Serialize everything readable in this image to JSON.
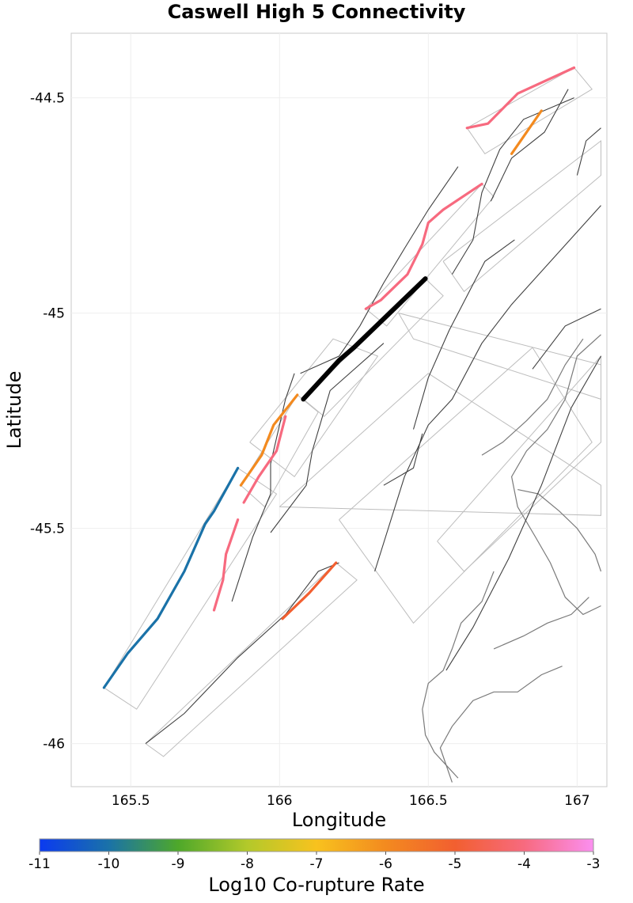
{
  "title": "Caswell High 5 Connectivity",
  "xlabel": "Longitude",
  "ylabel": "Latitude",
  "xlim": [
    165.3,
    167.1
  ],
  "ylim": [
    -46.1,
    -44.35
  ],
  "xticks": [
    165.5,
    166,
    166.5,
    167
  ],
  "xtick_labels": [
    "165.5",
    "166",
    "166.5",
    "167"
  ],
  "yticks": [
    -44.5,
    -45,
    -45.5,
    -46
  ],
  "ytick_labels": [
    "-44.5",
    "-45",
    "-45.5",
    "-46"
  ],
  "colorbar": {
    "label": "Log10 Co-rupture Rate",
    "min": -11,
    "max": -3,
    "ticks": [
      "-11",
      "-10",
      "-9",
      "-8",
      "-7",
      "-6",
      "-5",
      "-4",
      "-3"
    ],
    "colors": [
      "#0b3af0",
      "#1a72a8",
      "#4ea82a",
      "#b3c92a",
      "#f8c21e",
      "#f38a1f",
      "#f25f30",
      "#f76a7f",
      "#fb8ff0"
    ]
  },
  "colors": {
    "target_fault": "#000000",
    "outline": "#bdbdbd",
    "trace": "#404040",
    "coast": "#7a7a7a",
    "grid": "#eeeeee"
  },
  "chart_data": {
    "type": "map",
    "target_section": {
      "name": "Caswell High 5",
      "path": [
        [
          166.08,
          -45.2
        ],
        [
          166.2,
          -45.11
        ],
        [
          166.25,
          -45.08
        ],
        [
          166.49,
          -44.92
        ]
      ]
    },
    "connected_sections": [
      {
        "rate": -10.0,
        "path": [
          [
            165.41,
            -45.87
          ],
          [
            165.49,
            -45.79
          ],
          [
            165.59,
            -45.71
          ],
          [
            165.68,
            -45.6
          ],
          [
            165.75,
            -45.49
          ],
          [
            165.78,
            -45.46
          ],
          [
            165.86,
            -45.36
          ]
        ]
      },
      {
        "rate": -6.0,
        "path": [
          [
            165.87,
            -45.4
          ],
          [
            165.94,
            -45.33
          ],
          [
            165.98,
            -45.26
          ],
          [
            166.06,
            -45.19
          ]
        ]
      },
      {
        "rate": -4.0,
        "path": [
          [
            165.88,
            -45.44
          ],
          [
            165.93,
            -45.38
          ],
          [
            165.99,
            -45.32
          ],
          [
            166.02,
            -45.24
          ]
        ]
      },
      {
        "rate": -4.0,
        "path": [
          [
            165.78,
            -45.69
          ],
          [
            165.81,
            -45.62
          ],
          [
            165.82,
            -45.56
          ],
          [
            165.84,
            -45.52
          ],
          [
            165.86,
            -45.48
          ]
        ]
      },
      {
        "rate": -5.0,
        "path": [
          [
            166.01,
            -45.71
          ],
          [
            166.1,
            -45.65
          ],
          [
            166.19,
            -45.58
          ]
        ]
      },
      {
        "rate": -4.0,
        "path": [
          [
            166.29,
            -44.99
          ],
          [
            166.34,
            -44.97
          ],
          [
            166.43,
            -44.91
          ],
          [
            166.48,
            -44.84
          ],
          [
            166.5,
            -44.79
          ],
          [
            166.55,
            -44.76
          ],
          [
            166.68,
            -44.7
          ]
        ]
      },
      {
        "rate": -4.0,
        "path": [
          [
            166.63,
            -44.57
          ],
          [
            166.7,
            -44.56
          ],
          [
            166.8,
            -44.49
          ],
          [
            166.99,
            -44.43
          ]
        ]
      },
      {
        "rate": -6.0,
        "path": [
          [
            166.78,
            -44.63
          ],
          [
            166.82,
            -44.59
          ],
          [
            166.88,
            -44.53
          ]
        ]
      }
    ],
    "fault_outlines": [
      [
        [
          165.41,
          -45.87
        ],
        [
          165.86,
          -45.36
        ],
        [
          165.99,
          -45.42
        ],
        [
          165.52,
          -45.92
        ],
        [
          165.41,
          -45.87
        ]
      ],
      [
        [
          165.87,
          -45.4
        ],
        [
          166.06,
          -45.19
        ],
        [
          166.13,
          -45.23
        ],
        [
          165.95,
          -45.45
        ],
        [
          165.87,
          -45.4
        ]
      ],
      [
        [
          166.08,
          -45.2
        ],
        [
          166.49,
          -44.92
        ],
        [
          166.55,
          -44.96
        ],
        [
          166.15,
          -45.24
        ],
        [
          166.08,
          -45.2
        ]
      ],
      [
        [
          166.29,
          -44.99
        ],
        [
          166.68,
          -44.7
        ],
        [
          166.72,
          -44.73
        ],
        [
          166.36,
          -45.03
        ],
        [
          166.29,
          -44.99
        ]
      ],
      [
        [
          166.63,
          -44.57
        ],
        [
          166.99,
          -44.43
        ],
        [
          167.05,
          -44.48
        ],
        [
          166.69,
          -44.63
        ],
        [
          166.63,
          -44.57
        ]
      ],
      [
        [
          165.55,
          -46.0
        ],
        [
          166.19,
          -45.58
        ],
        [
          166.26,
          -45.62
        ],
        [
          165.61,
          -46.03
        ],
        [
          165.55,
          -46.0
        ]
      ],
      [
        [
          165.9,
          -45.3
        ],
        [
          166.18,
          -45.06
        ],
        [
          166.33,
          -45.1
        ],
        [
          166.05,
          -45.38
        ],
        [
          165.9,
          -45.3
        ]
      ],
      [
        [
          166.0,
          -45.45
        ],
        [
          166.5,
          -45.14
        ],
        [
          167.08,
          -45.4
        ],
        [
          167.08,
          -45.47
        ],
        [
          166.0,
          -45.45
        ]
      ],
      [
        [
          166.2,
          -45.48
        ],
        [
          166.85,
          -45.08
        ],
        [
          167.05,
          -45.3
        ],
        [
          166.45,
          -45.72
        ],
        [
          166.2,
          -45.48
        ]
      ],
      [
        [
          166.55,
          -44.88
        ],
        [
          167.08,
          -44.6
        ],
        [
          167.08,
          -44.68
        ],
        [
          166.62,
          -44.95
        ],
        [
          166.55,
          -44.88
        ]
      ],
      [
        [
          166.4,
          -45.0
        ],
        [
          167.08,
          -45.12
        ],
        [
          167.08,
          -45.2
        ],
        [
          166.45,
          -45.06
        ],
        [
          166.4,
          -45.0
        ]
      ],
      [
        [
          166.53,
          -45.53
        ],
        [
          167.08,
          -45.1
        ],
        [
          167.08,
          -45.3
        ],
        [
          166.62,
          -45.6
        ],
        [
          166.53,
          -45.53
        ]
      ]
    ],
    "fault_traces": [
      [
        [
          165.55,
          -46.0
        ],
        [
          165.68,
          -45.93
        ],
        [
          165.86,
          -45.8
        ],
        [
          166.02,
          -45.7
        ],
        [
          166.13,
          -45.6
        ],
        [
          166.2,
          -45.58
        ]
      ],
      [
        [
          165.84,
          -45.67
        ],
        [
          165.91,
          -45.52
        ],
        [
          165.97,
          -45.42
        ],
        [
          165.97,
          -45.35
        ],
        [
          166.02,
          -45.2
        ],
        [
          166.05,
          -45.14
        ]
      ],
      [
        [
          165.97,
          -45.51
        ],
        [
          166.09,
          -45.4
        ],
        [
          166.11,
          -45.32
        ],
        [
          166.17,
          -45.18
        ],
        [
          166.35,
          -45.07
        ]
      ],
      [
        [
          166.32,
          -45.6
        ],
        [
          166.42,
          -45.38
        ],
        [
          166.5,
          -45.26
        ],
        [
          166.58,
          -45.2
        ],
        [
          166.68,
          -45.07
        ],
        [
          166.78,
          -44.98
        ],
        [
          167.08,
          -44.75
        ]
      ],
      [
        [
          166.45,
          -45.27
        ],
        [
          166.5,
          -45.15
        ],
        [
          166.57,
          -45.04
        ],
        [
          166.69,
          -44.88
        ],
        [
          166.79,
          -44.83
        ]
      ],
      [
        [
          166.56,
          -45.83
        ],
        [
          166.65,
          -45.73
        ],
        [
          166.77,
          -45.57
        ],
        [
          166.88,
          -45.4
        ],
        [
          166.98,
          -45.22
        ],
        [
          167.08,
          -45.1
        ]
      ],
      [
        [
          166.58,
          -44.91
        ],
        [
          166.65,
          -44.83
        ],
        [
          166.68,
          -44.72
        ],
        [
          166.74,
          -44.62
        ],
        [
          166.82,
          -44.55
        ],
        [
          166.99,
          -44.5
        ]
      ],
      [
        [
          166.71,
          -44.74
        ],
        [
          166.78,
          -44.64
        ],
        [
          166.89,
          -44.58
        ],
        [
          166.97,
          -44.48
        ]
      ],
      [
        [
          166.85,
          -45.13
        ],
        [
          166.96,
          -45.03
        ],
        [
          167.08,
          -44.99
        ]
      ],
      [
        [
          167.0,
          -44.68
        ],
        [
          167.03,
          -44.6
        ],
        [
          167.08,
          -44.57
        ]
      ],
      [
        [
          166.07,
          -45.14
        ],
        [
          166.2,
          -45.1
        ],
        [
          166.27,
          -45.03
        ],
        [
          166.35,
          -44.93
        ],
        [
          166.42,
          -44.85
        ],
        [
          166.5,
          -44.76
        ],
        [
          166.6,
          -44.66
        ]
      ],
      [
        [
          166.35,
          -45.4
        ],
        [
          166.45,
          -45.36
        ],
        [
          166.48,
          -45.28
        ]
      ]
    ],
    "coastlines": [
      [
        [
          167.08,
          -45.05
        ],
        [
          167.0,
          -45.1
        ],
        [
          166.96,
          -45.2
        ],
        [
          166.9,
          -45.27
        ],
        [
          166.83,
          -45.32
        ],
        [
          166.78,
          -45.38
        ],
        [
          166.8,
          -45.45
        ],
        [
          166.86,
          -45.52
        ],
        [
          166.91,
          -45.58
        ],
        [
          166.96,
          -45.66
        ],
        [
          167.02,
          -45.7
        ],
        [
          167.08,
          -45.68
        ]
      ],
      [
        [
          166.72,
          -45.6
        ],
        [
          166.68,
          -45.67
        ],
        [
          166.61,
          -45.72
        ],
        [
          166.58,
          -45.78
        ],
        [
          166.55,
          -45.83
        ],
        [
          166.5,
          -45.86
        ],
        [
          166.48,
          -45.92
        ],
        [
          166.49,
          -45.98
        ],
        [
          166.52,
          -46.02
        ],
        [
          166.56,
          -46.05
        ],
        [
          166.6,
          -46.08
        ]
      ],
      [
        [
          166.68,
          -45.33
        ],
        [
          166.75,
          -45.3
        ],
        [
          166.83,
          -45.25
        ],
        [
          166.9,
          -45.2
        ],
        [
          166.96,
          -45.12
        ],
        [
          167.02,
          -45.06
        ]
      ],
      [
        [
          166.8,
          -45.41
        ],
        [
          166.87,
          -45.42
        ],
        [
          166.94,
          -45.46
        ],
        [
          167.0,
          -45.5
        ],
        [
          167.06,
          -45.56
        ],
        [
          167.08,
          -45.6
        ]
      ],
      [
        [
          166.58,
          -46.09
        ],
        [
          166.54,
          -46.01
        ],
        [
          166.58,
          -45.96
        ],
        [
          166.65,
          -45.9
        ],
        [
          166.72,
          -45.88
        ],
        [
          166.8,
          -45.88
        ],
        [
          166.88,
          -45.84
        ],
        [
          166.95,
          -45.82
        ]
      ],
      [
        [
          166.72,
          -45.78
        ],
        [
          166.82,
          -45.75
        ],
        [
          166.9,
          -45.72
        ],
        [
          166.98,
          -45.7
        ],
        [
          167.04,
          -45.66
        ]
      ]
    ]
  }
}
